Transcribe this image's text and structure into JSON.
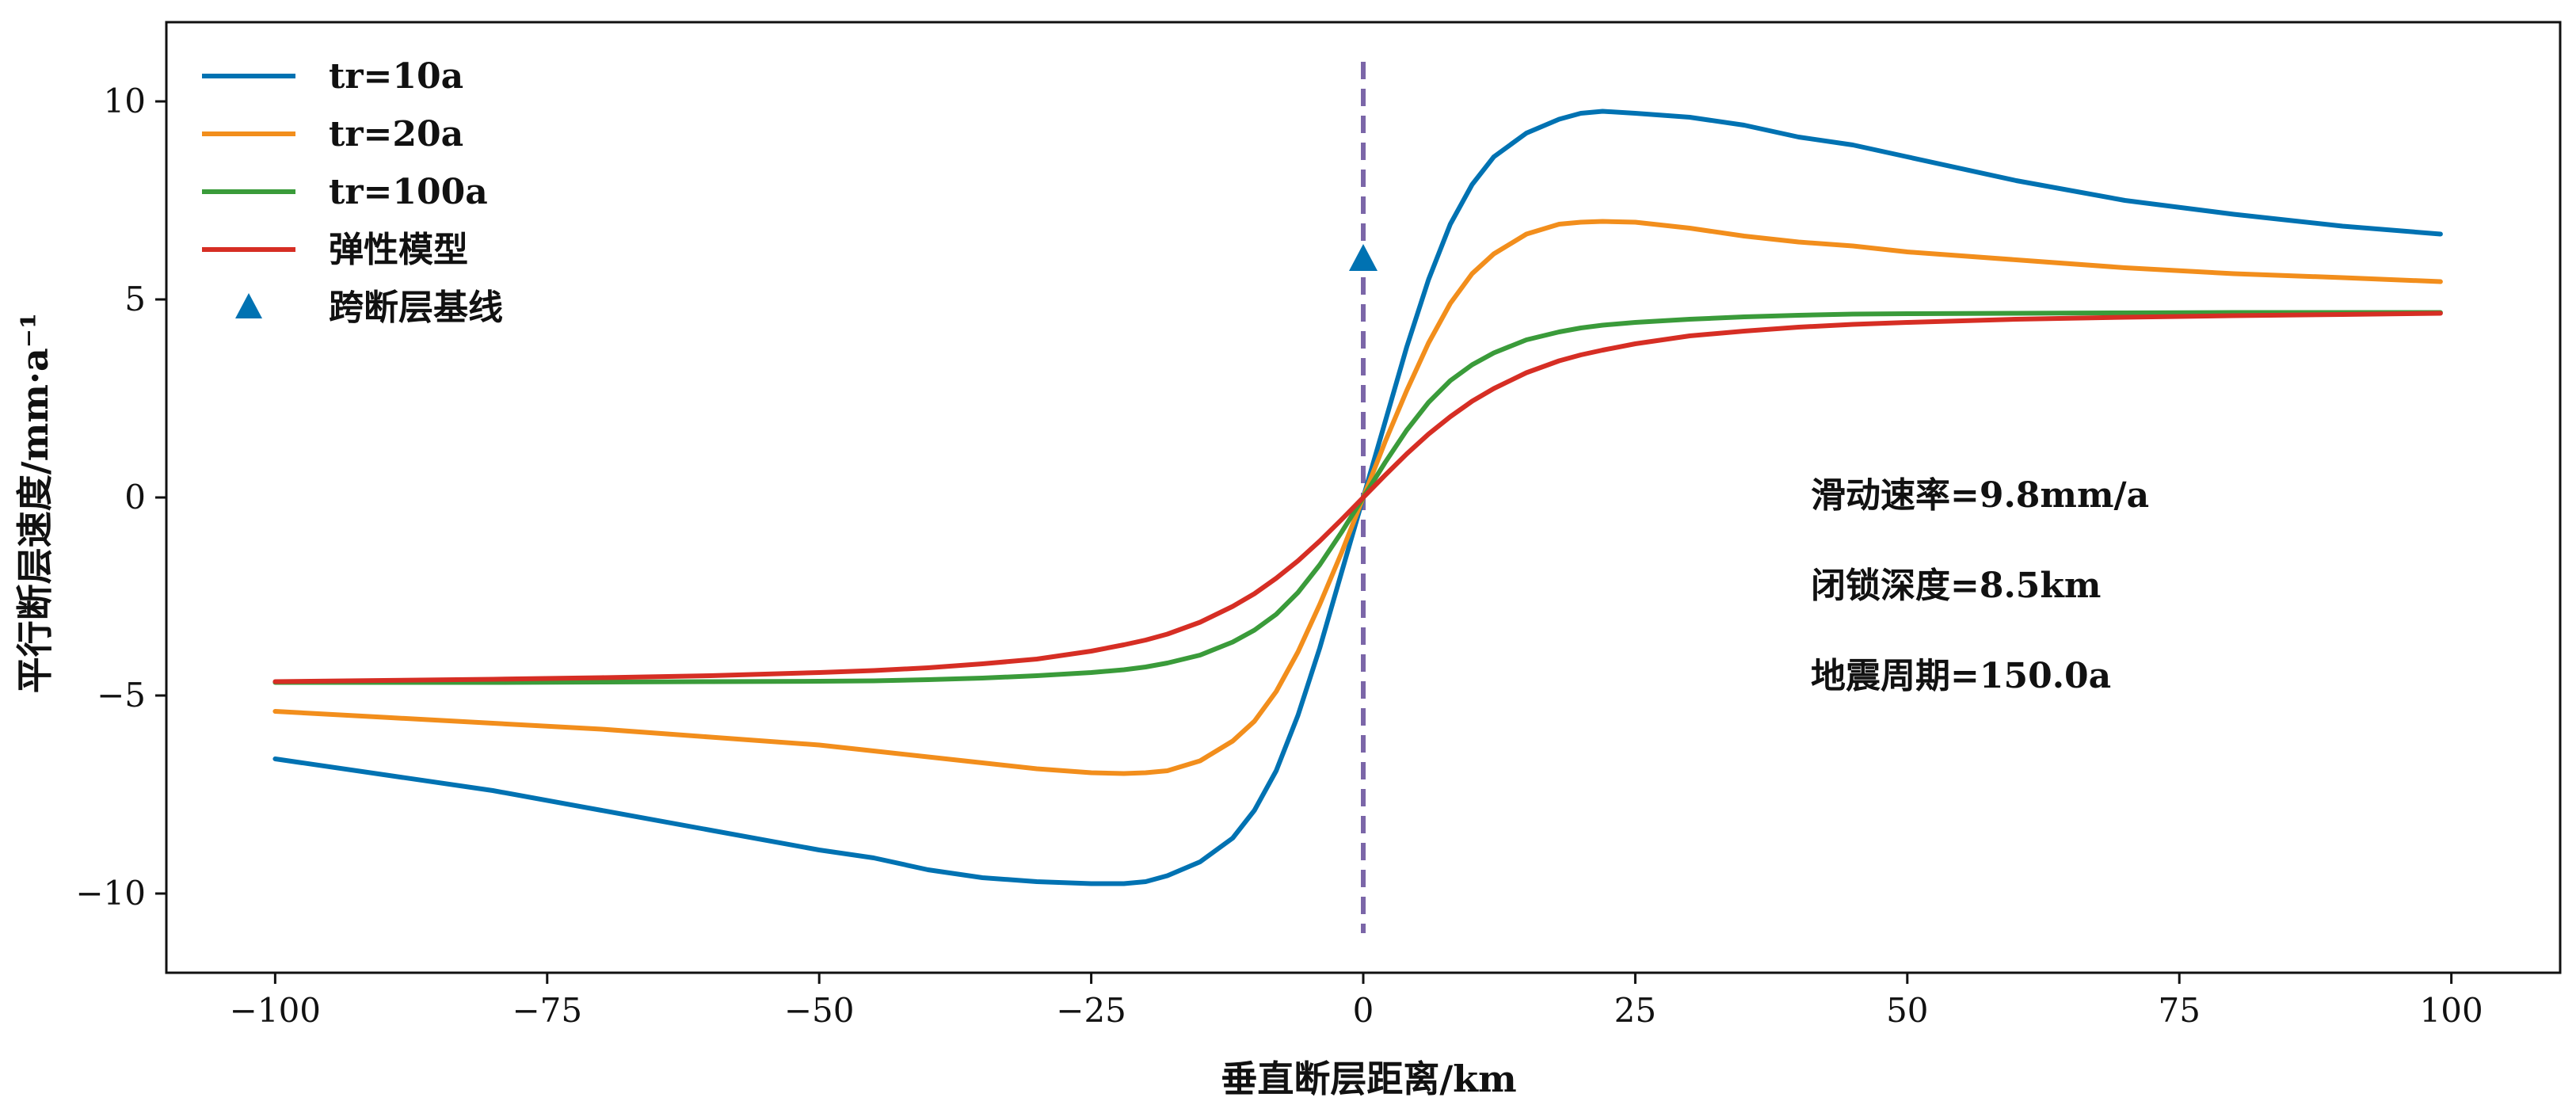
{
  "chart_data": {
    "type": "line",
    "title": "",
    "xlabel": "垂直断层距离/km",
    "ylabel": "平行断层速度/mm·a⁻¹",
    "xlim": [
      -110,
      110
    ],
    "ylim": [
      -12,
      12
    ],
    "xticks": [
      -100,
      -75,
      -50,
      -25,
      0,
      25,
      50,
      75,
      100
    ],
    "yticks": [
      -10,
      -5,
      0,
      5,
      10
    ],
    "xtick_labels": [
      "−100",
      "−75",
      "−50",
      "−25",
      "0",
      "25",
      "50",
      "75",
      "100"
    ],
    "ytick_labels": [
      "−10",
      "−5",
      "0",
      "5",
      "10"
    ],
    "grid": false,
    "legend_position": "top-left",
    "x": [
      -100,
      -90,
      -80,
      -70,
      -60,
      -50,
      -45,
      -40,
      -35,
      -30,
      -25,
      -22,
      -20,
      -18,
      -15,
      -12,
      -10,
      -8,
      -6,
      -4,
      -2,
      0,
      2,
      4,
      6,
      8,
      10,
      12,
      15,
      18,
      20,
      22,
      25,
      30,
      35,
      40,
      45,
      50,
      60,
      70,
      80,
      90,
      99
    ],
    "series": [
      {
        "name": "tr=10a",
        "color": "#0072b2",
        "values": [
          -6.6,
          -7.0,
          -7.4,
          -7.9,
          -8.4,
          -8.9,
          -9.1,
          -9.4,
          -9.6,
          -9.7,
          -9.75,
          -9.75,
          -9.7,
          -9.55,
          -9.2,
          -8.6,
          -7.9,
          -6.9,
          -5.5,
          -3.8,
          -1.9,
          0.0,
          1.9,
          3.8,
          5.5,
          6.9,
          7.9,
          8.6,
          9.2,
          9.55,
          9.7,
          9.75,
          9.7,
          9.6,
          9.4,
          9.1,
          8.9,
          8.6,
          8.0,
          7.5,
          7.15,
          6.85,
          6.65
        ]
      },
      {
        "name": "tr=20a",
        "color": "#f28e1c",
        "values": [
          -5.4,
          -5.55,
          -5.7,
          -5.85,
          -6.05,
          -6.25,
          -6.4,
          -6.55,
          -6.7,
          -6.85,
          -6.95,
          -6.97,
          -6.95,
          -6.9,
          -6.65,
          -6.15,
          -5.65,
          -4.9,
          -3.9,
          -2.7,
          -1.4,
          0.0,
          1.4,
          2.7,
          3.9,
          4.9,
          5.65,
          6.15,
          6.65,
          6.9,
          6.95,
          6.97,
          6.95,
          6.8,
          6.6,
          6.45,
          6.35,
          6.2,
          6.0,
          5.8,
          5.65,
          5.55,
          5.45
        ]
      },
      {
        "name": "tr=100a",
        "color": "#3a9b3a",
        "values": [
          -4.67,
          -4.67,
          -4.67,
          -4.66,
          -4.65,
          -4.64,
          -4.63,
          -4.6,
          -4.56,
          -4.5,
          -4.42,
          -4.35,
          -4.28,
          -4.18,
          -3.98,
          -3.65,
          -3.35,
          -2.95,
          -2.4,
          -1.7,
          -0.88,
          0.0,
          0.88,
          1.7,
          2.4,
          2.95,
          3.35,
          3.65,
          3.98,
          4.18,
          4.28,
          4.35,
          4.42,
          4.5,
          4.56,
          4.6,
          4.63,
          4.64,
          4.65,
          4.66,
          4.67,
          4.67,
          4.67
        ]
      },
      {
        "name": "弹性模型",
        "color": "#d62e24",
        "values": [
          -4.65,
          -4.62,
          -4.59,
          -4.55,
          -4.5,
          -4.42,
          -4.37,
          -4.3,
          -4.2,
          -4.08,
          -3.88,
          -3.72,
          -3.6,
          -3.45,
          -3.15,
          -2.75,
          -2.43,
          -2.04,
          -1.6,
          -1.1,
          -0.56,
          0.0,
          0.56,
          1.1,
          1.6,
          2.04,
          2.43,
          2.75,
          3.15,
          3.45,
          3.6,
          3.72,
          3.88,
          4.08,
          4.2,
          4.3,
          4.37,
          4.42,
          4.5,
          4.55,
          4.59,
          4.62,
          4.65
        ]
      }
    ],
    "markers": [
      {
        "name": "跨断层基线",
        "color": "#0072b2",
        "shape": "triangle",
        "x": 0,
        "y": 6.0
      }
    ],
    "vline": {
      "x": 0,
      "ymin": -11,
      "ymax": 11,
      "color": "#7b66a8",
      "style": "dashed"
    },
    "annotations": [
      "滑动速率=9.8mm/a",
      "闭锁深度=8.5km",
      "地震周期=150.0a"
    ]
  }
}
